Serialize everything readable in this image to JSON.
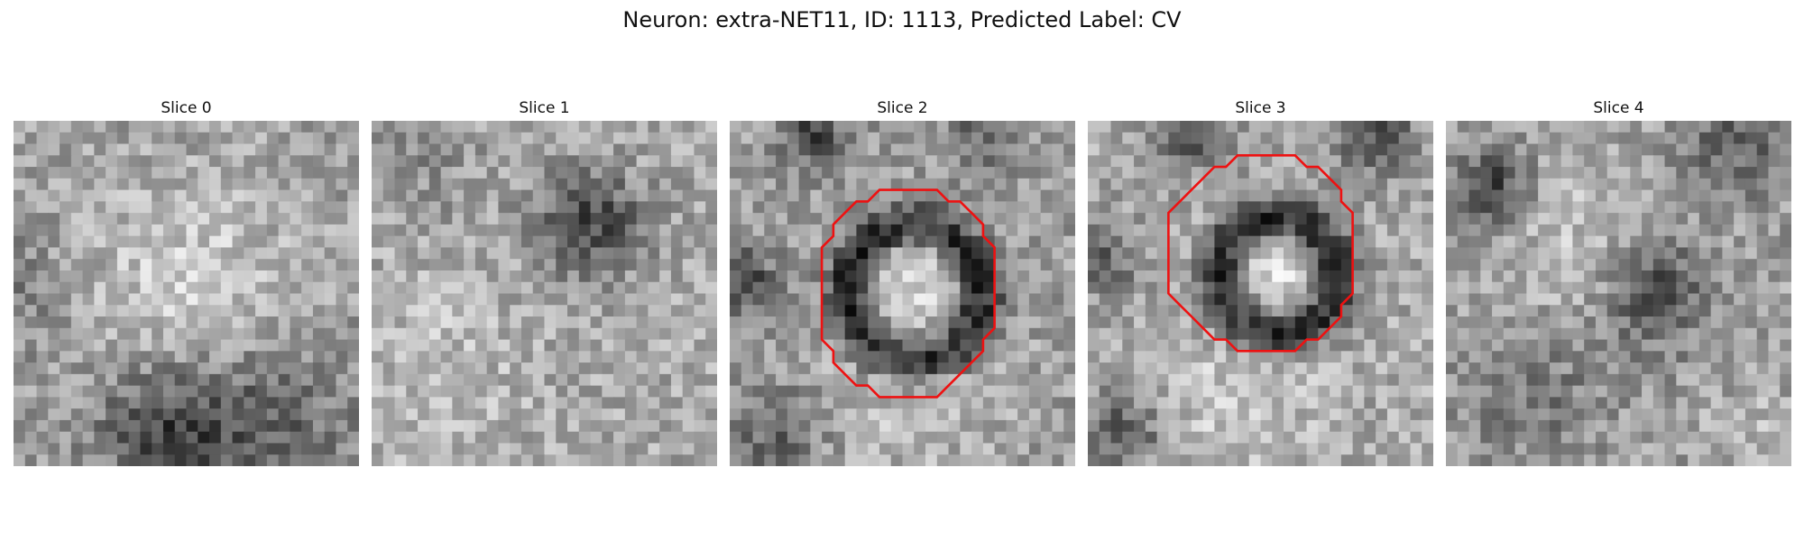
{
  "figure": {
    "title": "Neuron: extra-NET11, ID: 1113, Predicted Label: CV"
  },
  "colors": {
    "contour": "#ee1111"
  },
  "slices": [
    {
      "label": "Slice 0",
      "has_contour": false
    },
    {
      "label": "Slice 1",
      "has_contour": false
    },
    {
      "label": "Slice 2",
      "has_contour": true
    },
    {
      "label": "Slice 3",
      "has_contour": true
    },
    {
      "label": "Slice 4",
      "has_contour": false
    }
  ]
}
